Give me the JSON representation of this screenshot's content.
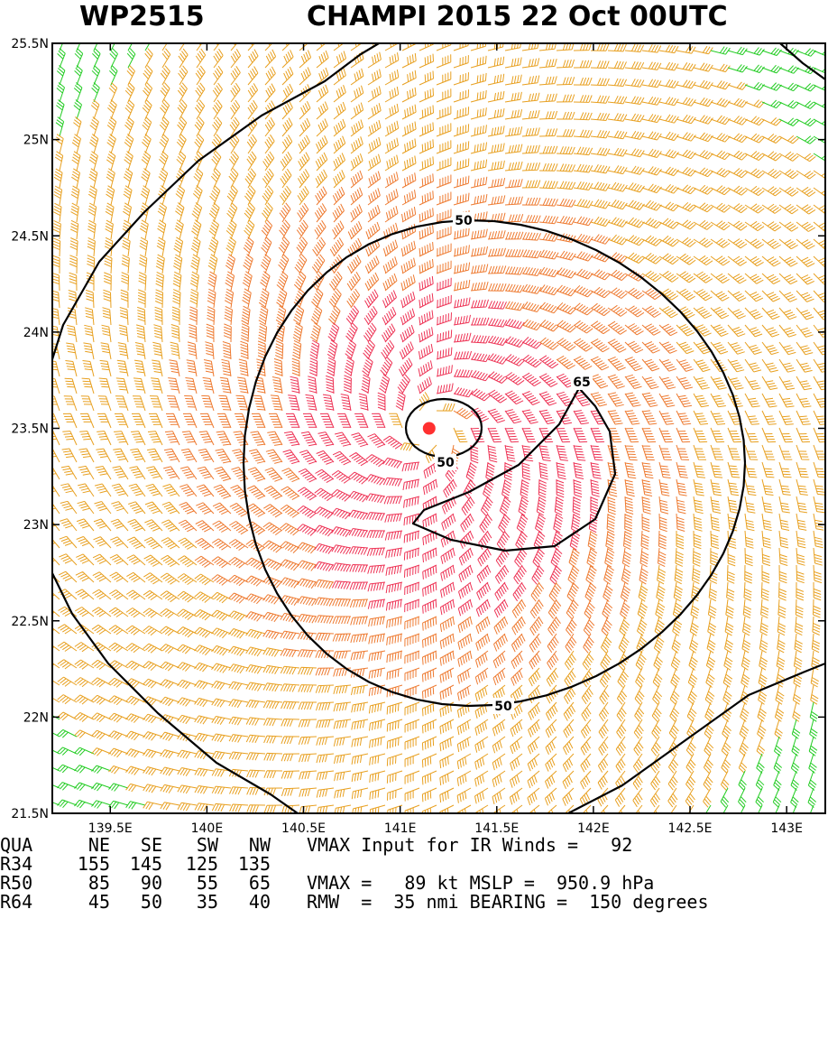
{
  "title": {
    "storm_id": "WP2515",
    "storm_info": "CHAMPI 2015 22 Oct 00UTC"
  },
  "chart_data": {
    "type": "wind-barb-map",
    "x_axis": {
      "range": [
        139.2,
        143.2
      ],
      "ticks": [
        139.5,
        140.0,
        140.5,
        141.0,
        141.5,
        142.0,
        142.5,
        143.0
      ],
      "tick_labels": [
        "139.5E",
        "140E",
        "140.5E",
        "141E",
        "141.5E",
        "142E",
        "142.5E",
        "143E"
      ]
    },
    "y_axis": {
      "range": [
        21.5,
        25.5
      ],
      "ticks": [
        21.5,
        22.0,
        22.5,
        23.0,
        23.5,
        24.0,
        24.5,
        25.0,
        25.5
      ],
      "tick_labels": [
        "21.5N",
        "22N",
        "22.5N",
        "23N",
        "23.5N",
        "24N",
        "24.5N",
        "25N",
        "25.5N"
      ]
    },
    "center": {
      "lon": 141.15,
      "lat": 23.5,
      "color": "#ff3030"
    },
    "contours": [
      {
        "level": 50,
        "label": "50"
      },
      {
        "level": 65,
        "label": "65"
      }
    ],
    "contour_label_values": [
      "50",
      "65",
      "50",
      "50"
    ],
    "wind_colors": {
      "lt34": "#22cc22",
      "34to50": "#e8a020",
      "50to64": "#ee7a30",
      "ge64": "#ee3355"
    },
    "grid": false
  },
  "stats": {
    "header": [
      "QUA",
      "NE",
      "SE",
      "SW",
      "NW"
    ],
    "rows": [
      {
        "label": "R34",
        "ne": "155",
        "se": "145",
        "sw": "125",
        "nw": "135"
      },
      {
        "label": "R50",
        "ne": "85",
        "se": "90",
        "sw": "55",
        "nw": "65"
      },
      {
        "label": "R64",
        "ne": "45",
        "se": "50",
        "sw": "35",
        "nw": "40"
      }
    ],
    "line1": "VMAX Input for IR Winds =   92",
    "line2": "",
    "line3": "VMAX =   89 kt MSLP =  950.9 hPa",
    "line4": "RMW  =  35 nmi BEARING =  150 degrees"
  }
}
